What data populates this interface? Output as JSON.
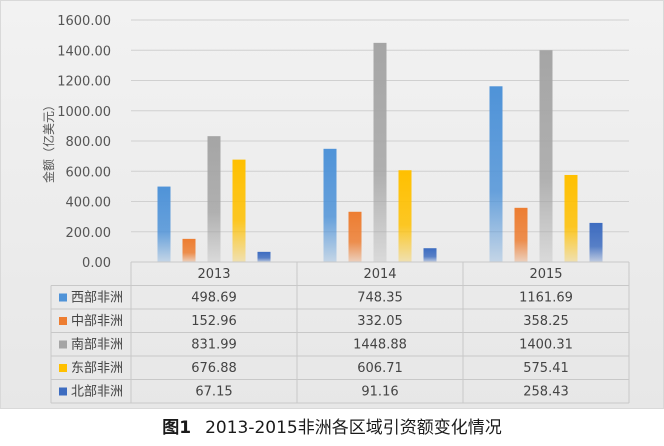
{
  "chart_data": {
    "type": "bar",
    "categories": [
      "2013",
      "2014",
      "2015"
    ],
    "series": [
      {
        "name": "西部非洲",
        "values": [
          498.69,
          748.35,
          1161.69
        ],
        "color": "#4f93d8",
        "values_text": [
          "498.69",
          "748.35",
          "1161.69"
        ]
      },
      {
        "name": "中部非洲",
        "values": [
          152.96,
          332.05,
          358.25
        ],
        "color": "#ed7d31",
        "values_text": [
          "152.96",
          "332.05",
          "358.25"
        ]
      },
      {
        "name": "南部非洲",
        "values": [
          831.99,
          1448.88,
          1400.31
        ],
        "color": "#a5a5a5",
        "values_text": [
          "831.99",
          "1448.88",
          "1400.31"
        ]
      },
      {
        "name": "东部非洲",
        "values": [
          676.88,
          606.71,
          575.41
        ],
        "color": "#ffc000",
        "values_text": [
          "676.88",
          "606.71",
          "575.41"
        ]
      },
      {
        "name": "北部非洲",
        "values": [
          67.15,
          91.16,
          258.43
        ],
        "color": "#3d6cc0",
        "values_text": [
          "67.15",
          "91.16",
          "258.43"
        ]
      }
    ],
    "ylabel": "金额（亿美元）",
    "ylim": [
      0,
      1600
    ],
    "yticks": [
      "0.00",
      "200.00",
      "400.00",
      "600.00",
      "800.00",
      "1000.00",
      "1200.00",
      "1400.00",
      "1600.00"
    ],
    "grid": true,
    "legend": "data-table"
  },
  "caption": {
    "figure_label": "图1",
    "text": "2013-2015非洲各区域引资额变化情况"
  }
}
